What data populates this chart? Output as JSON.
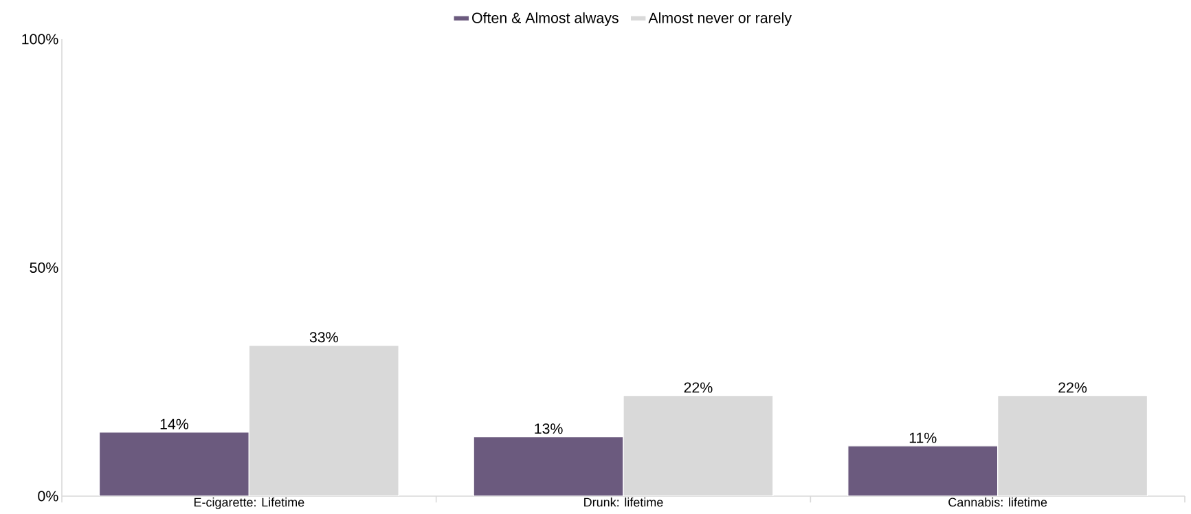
{
  "chart_data": {
    "type": "bar",
    "categories": [
      "E-cigarette: Lifetime",
      "Drunk: lifetime",
      "Cannabis: lifetime"
    ],
    "series": [
      {
        "name": "Often & Almost always",
        "color": "#6b5a7e",
        "values": [
          14,
          13,
          11
        ],
        "value_labels": [
          "14%",
          "13%",
          "11%"
        ]
      },
      {
        "name": "Almost never or rarely",
        "color": "#d9d9d9",
        "values": [
          33,
          22,
          22
        ],
        "value_labels": [
          "33%",
          "22%",
          "22%"
        ]
      }
    ],
    "ylim": [
      0,
      100
    ],
    "yticks": [
      {
        "value": 0,
        "label": "0%"
      },
      {
        "value": 50,
        "label": "50%"
      },
      {
        "value": 100,
        "label": "100%"
      }
    ],
    "legend": "top",
    "grid": false
  }
}
